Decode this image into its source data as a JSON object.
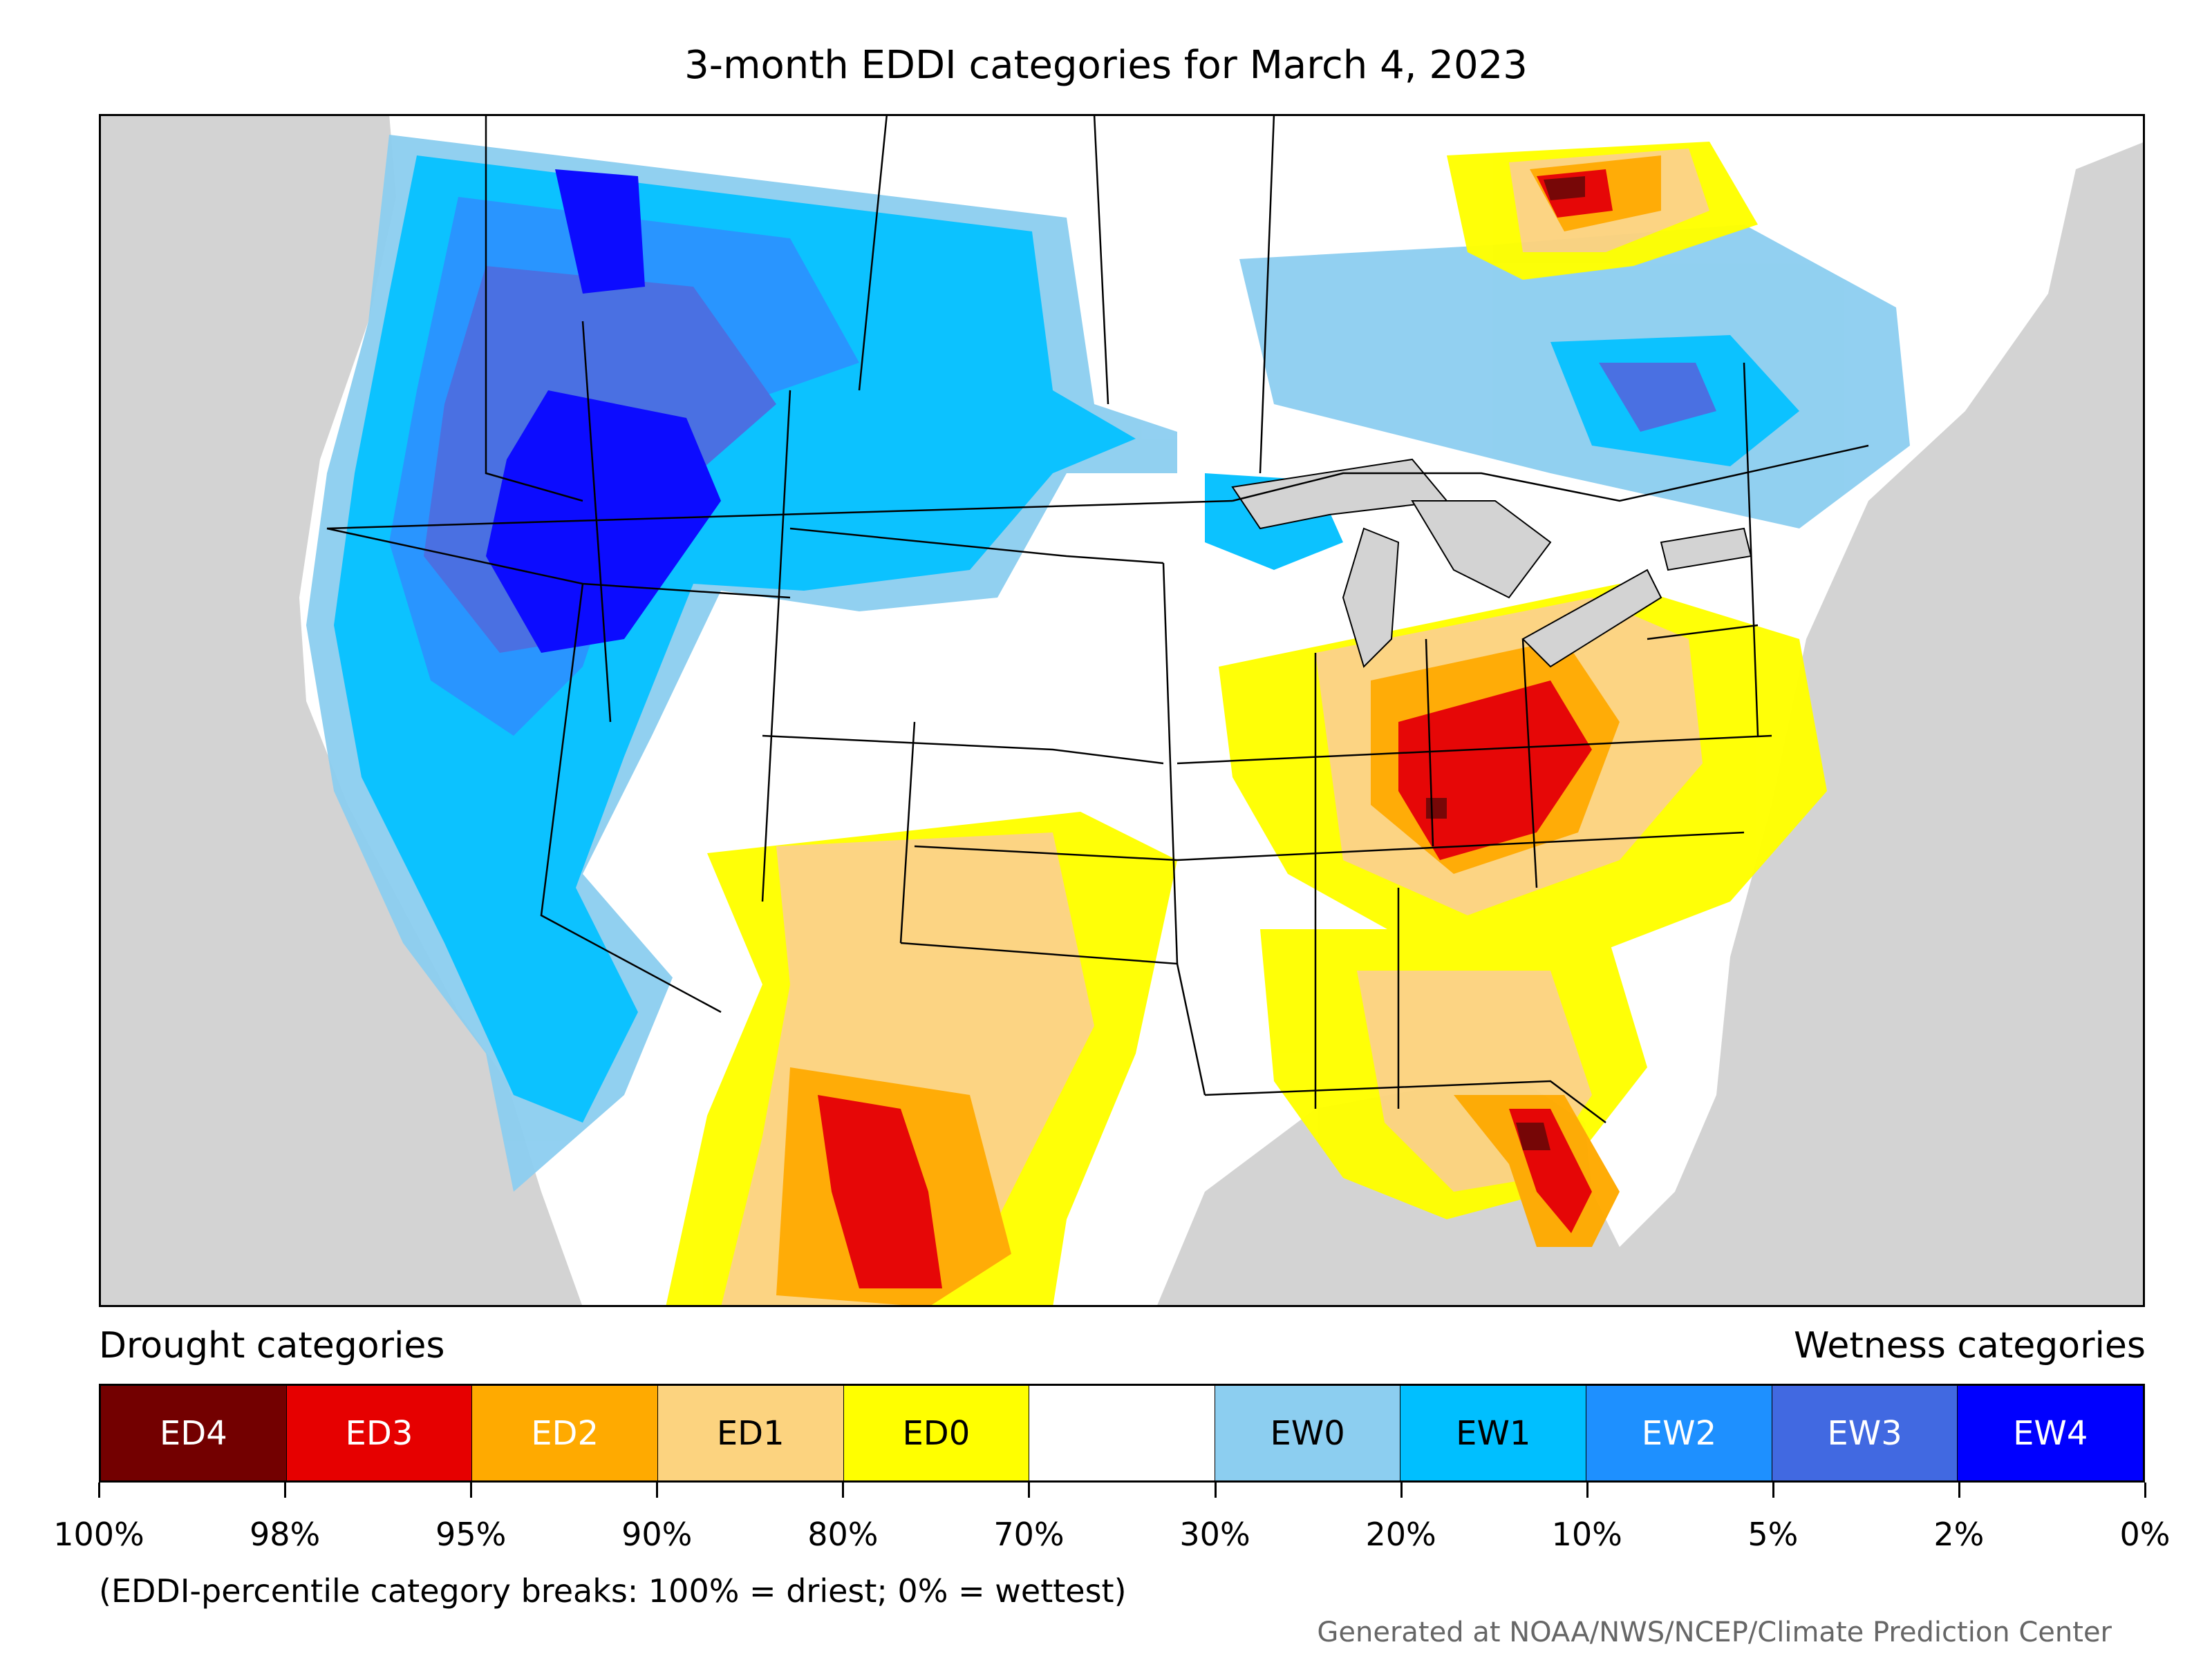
{
  "title": "3-month EDDI categories for March 4, 2023",
  "legend": {
    "drought_heading": "Drought categories",
    "wetness_heading": "Wetness categories",
    "categories": [
      {
        "label": "ED4",
        "color": "#730000",
        "text_color": "#ffffff"
      },
      {
        "label": "ED3",
        "color": "#e60000",
        "text_color": "#ffffff"
      },
      {
        "label": "ED2",
        "color": "#ffaa00",
        "text_color": "#ffffff"
      },
      {
        "label": "ED1",
        "color": "#fcd37f",
        "text_color": "#000000"
      },
      {
        "label": "ED0",
        "color": "#ffff00",
        "text_color": "#000000"
      },
      {
        "label": "",
        "color": "#ffffff",
        "text_color": "#000000"
      },
      {
        "label": "EW0",
        "color": "#8ccef0",
        "text_color": "#000000"
      },
      {
        "label": "EW1",
        "color": "#00bfff",
        "text_color": "#000000"
      },
      {
        "label": "EW2",
        "color": "#1e90ff",
        "text_color": "#ffffff"
      },
      {
        "label": "EW3",
        "color": "#4169e1",
        "text_color": "#ffffff"
      },
      {
        "label": "EW4",
        "color": "#0000ff",
        "text_color": "#ffffff"
      }
    ],
    "breaks": [
      "100%",
      "98%",
      "95%",
      "90%",
      "80%",
      "70%",
      "30%",
      "20%",
      "10%",
      "5%",
      "2%",
      "0%"
    ]
  },
  "footnote": "(EDDI-percentile category breaks: 100% = driest; 0% = wettest)",
  "credit": "Generated at NOAA/NWS/NCEP/Climate Prediction Center",
  "map": {
    "ocean_color": "#d3d3d3",
    "land_color": "#ffffff"
  }
}
